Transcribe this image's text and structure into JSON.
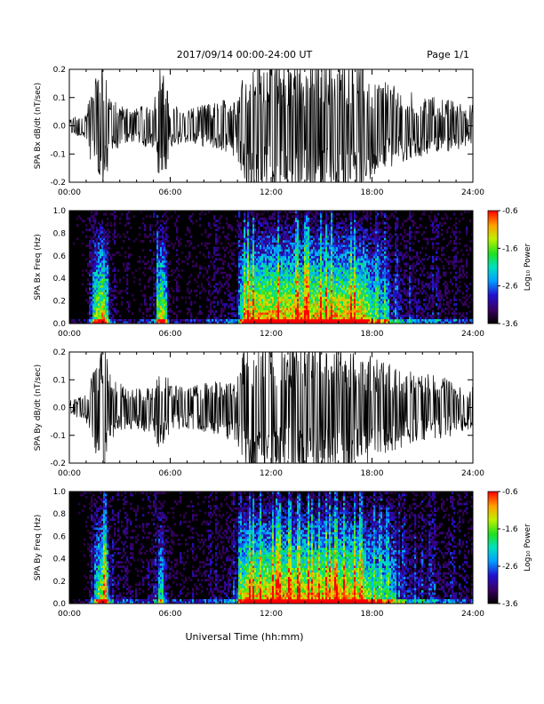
{
  "header": {
    "title": "2017/09/14  00:00-24:00 UT",
    "page": "Page 1/1"
  },
  "xlabel": "Universal Time (hh:mm)",
  "chart_data": [
    {
      "type": "line",
      "ylabel": "SPA Bx dB/dt (nT/sec)",
      "xlim": [
        0,
        24
      ],
      "ylim": [
        -0.2,
        0.2
      ],
      "xticks": [
        "00:00",
        "06:00",
        "12:00",
        "18:00",
        "24:00"
      ],
      "yticks": [
        "0.2",
        "0.1",
        "0.0",
        "-0.1",
        "-0.2"
      ],
      "series": [
        {
          "x": [
            0,
            1,
            1.5,
            2,
            2.5,
            3,
            4,
            5,
            5.5,
            6,
            7,
            8,
            9,
            10,
            10.5,
            11,
            12,
            13,
            14,
            15,
            16,
            17,
            17.5,
            18,
            19,
            20,
            21,
            22,
            23,
            24
          ],
          "y": [
            0.02,
            0.04,
            0.15,
            0.2,
            0.08,
            0.06,
            0.05,
            0.07,
            0.2,
            0.06,
            0.05,
            0.06,
            0.07,
            0.1,
            0.2,
            0.2,
            0.2,
            0.2,
            0.2,
            0.2,
            0.2,
            0.2,
            0.2,
            0.14,
            0.12,
            0.1,
            0.09,
            0.08,
            0.07,
            0.06
          ],
          "color": "#000000"
        }
      ]
    },
    {
      "type": "heatmap",
      "ylabel": "SPA Bx Freq (Hz)",
      "xlim": [
        0,
        24
      ],
      "ylim": [
        0,
        1
      ],
      "xticks": [
        "00:00",
        "06:00",
        "12:00",
        "18:00",
        "24:00"
      ],
      "yticks": [
        "1.0",
        "0.8",
        "0.6",
        "0.4",
        "0.2",
        "0.0"
      ],
      "colorbar": {
        "label": "Log₁₀ Power",
        "range": [
          -3.6,
          -0.6
        ],
        "ticks": [
          "-0.6",
          "-1.6",
          "-2.6",
          "-3.6"
        ]
      }
    },
    {
      "type": "line",
      "ylabel": "SPA By dB/dt (nT/sec)",
      "xlim": [
        0,
        24
      ],
      "ylim": [
        -0.2,
        0.2
      ],
      "xticks": [
        "00:00",
        "06:00",
        "12:00",
        "18:00",
        "24:00"
      ],
      "yticks": [
        "0.2",
        "0.1",
        "0.0",
        "-0.1",
        "-0.2"
      ],
      "series": [
        {
          "x": [
            0,
            1,
            1.5,
            2,
            2.5,
            3,
            4,
            5,
            5.5,
            6,
            7,
            8,
            9,
            10,
            10.5,
            11,
            12,
            13,
            14,
            15,
            16,
            17,
            17.5,
            18,
            19,
            20,
            21,
            22,
            23,
            24
          ],
          "y": [
            0.02,
            0.04,
            0.12,
            0.2,
            0.09,
            0.07,
            0.06,
            0.08,
            0.14,
            0.07,
            0.06,
            0.07,
            0.08,
            0.11,
            0.2,
            0.2,
            0.2,
            0.2,
            0.2,
            0.2,
            0.2,
            0.2,
            0.18,
            0.15,
            0.13,
            0.11,
            0.1,
            0.09,
            0.08,
            0.06
          ],
          "color": "#000000"
        }
      ]
    },
    {
      "type": "heatmap",
      "ylabel": "SPA By Freq (Hz)",
      "xlim": [
        0,
        24
      ],
      "ylim": [
        0,
        1
      ],
      "xticks": [
        "00:00",
        "06:00",
        "12:00",
        "18:00",
        "24:00"
      ],
      "yticks": [
        "1.0",
        "0.8",
        "0.6",
        "0.4",
        "0.2",
        "0.0"
      ],
      "colorbar": {
        "label": "Log₁₀ Power",
        "range": [
          -3.6,
          -0.6
        ],
        "ticks": [
          "-0.6",
          "-1.6",
          "-2.6",
          "-3.6"
        ]
      }
    }
  ]
}
